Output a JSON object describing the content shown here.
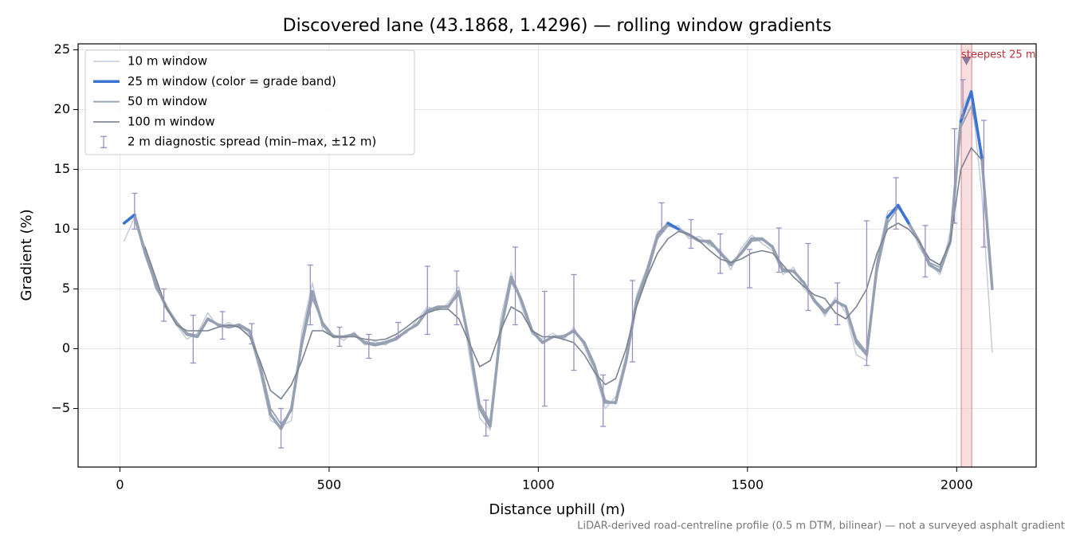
{
  "chart_data": {
    "type": "line",
    "title": "Discovered lane (43.1868, 1.4296) — rolling window gradients",
    "xlabel": "Distance uphill (m)",
    "ylabel": "Gradient (%)",
    "footnote": "LiDAR-derived road-centreline profile (0.5 m DTM, bilinear) — not a surveyed asphalt gradient",
    "xlim": [
      -100,
      2190
    ],
    "ylim": [
      -9.9,
      25.5
    ],
    "xticks": [
      0,
      500,
      1000,
      1500,
      2000
    ],
    "yticks": [
      {
        "value": -5,
        "label": "−5"
      },
      0,
      5,
      10,
      15,
      20,
      25
    ],
    "grid": true,
    "legend": "upper left",
    "x": [
      10,
      35,
      60,
      85,
      110,
      135,
      160,
      185,
      210,
      235,
      260,
      285,
      310,
      335,
      360,
      385,
      410,
      435,
      460,
      485,
      510,
      535,
      560,
      585,
      610,
      635,
      660,
      685,
      710,
      735,
      760,
      785,
      810,
      835,
      860,
      885,
      910,
      935,
      960,
      985,
      1010,
      1035,
      1060,
      1085,
      1110,
      1135,
      1160,
      1185,
      1210,
      1235,
      1260,
      1285,
      1310,
      1335,
      1360,
      1385,
      1410,
      1435,
      1460,
      1485,
      1510,
      1535,
      1560,
      1585,
      1610,
      1635,
      1660,
      1685,
      1710,
      1735,
      1760,
      1785,
      1810,
      1835,
      1860,
      1885,
      1910,
      1935,
      1960,
      1985,
      2010,
      2035,
      2060,
      2085
    ],
    "series": [
      {
        "name": "10 m window",
        "color": "#c3ccd8",
        "width": 1.5,
        "values": [
          9.0,
          11.0,
          8.5,
          5.0,
          3.8,
          2.0,
          0.8,
          1.3,
          3.0,
          1.8,
          2.2,
          1.7,
          1.2,
          -2.0,
          -6.0,
          -6.5,
          -6.0,
          1.5,
          5.5,
          1.5,
          1.2,
          0.7,
          1.4,
          0.3,
          0.6,
          0.3,
          1.0,
          1.3,
          2.4,
          3.5,
          3.2,
          3.8,
          5.2,
          -0.5,
          -5.8,
          -6.8,
          2.5,
          6.4,
          3.5,
          1.2,
          0.8,
          1.3,
          0.7,
          1.8,
          0.2,
          -2.0,
          -5.0,
          -4.0,
          -0.5,
          4.5,
          6.8,
          9.8,
          10.2,
          10.3,
          9.2,
          9.4,
          8.6,
          8.3,
          6.6,
          8.4,
          9.5,
          8.8,
          8.2,
          6.2,
          6.8,
          5.0,
          4.2,
          2.7,
          4.3,
          3.0,
          -0.5,
          -1.0,
          7.5,
          11.5,
          11.8,
          10.8,
          8.5,
          7.2,
          6.2,
          9.8,
          20.0,
          21.5,
          13.0,
          -0.3
        ]
      },
      {
        "name": "25 m window (color = grade band)",
        "color": "#3a75d4",
        "width": 3.5,
        "grade_bands": [
          {
            "from": null,
            "color": "#95a1b2"
          },
          {
            "from": 10,
            "color": "#3a75d4"
          },
          {
            "from": 20,
            "color": "#e08a0b"
          }
        ],
        "values": [
          10.5,
          11.2,
          8,
          5.5,
          3.5,
          2.2,
          1.2,
          1.0,
          2.5,
          2.0,
          1.8,
          2.0,
          1.5,
          -1.5,
          -5.5,
          -6.7,
          -5,
          0.5,
          4.8,
          2.0,
          1.0,
          1.0,
          1.2,
          0.5,
          0.3,
          0.5,
          0.8,
          1.5,
          2.0,
          3.2,
          3.5,
          3.5,
          4.8,
          0.5,
          -5,
          -6.5,
          1.5,
          6,
          4.0,
          1.5,
          0.5,
          1.0,
          1.0,
          1.5,
          0.5,
          -1.5,
          -4.5,
          -4.5,
          -1.0,
          4.0,
          6.5,
          9.5,
          10.5,
          10.0,
          9.5,
          9.0,
          9.0,
          8.0,
          7.0,
          8.0,
          9.2,
          9.2,
          8.5,
          6.5,
          6.5,
          5.5,
          4.0,
          3.0,
          4.0,
          3.5,
          0.5,
          -0.5,
          7.0,
          11.0,
          12.0,
          10.5,
          9.0,
          7.0,
          6.5,
          9.0,
          19.0,
          21.5,
          16,
          5
        ]
      },
      {
        "name": "50 m window",
        "color": "#9ba6b5",
        "width": 2,
        "values": [
          null,
          10.8,
          8.2,
          5.2,
          3.6,
          2.1,
          1.3,
          1.1,
          2.4,
          2.0,
          1.9,
          1.9,
          1.4,
          -1.2,
          -5.0,
          -6.3,
          -5.2,
          0.2,
          4.2,
          2.2,
          1.1,
          1.0,
          1.1,
          0.6,
          0.4,
          0.6,
          0.9,
          1.5,
          2.1,
          3.1,
          3.4,
          3.6,
          4.5,
          0.8,
          -4.6,
          -6.2,
          1.2,
          5.6,
          4.1,
          1.6,
          0.6,
          1.0,
          1.1,
          1.4,
          0.6,
          -1.3,
          -4.3,
          -4.6,
          -1.2,
          3.8,
          6.2,
          9.2,
          10.3,
          10.0,
          9.6,
          9.1,
          8.8,
          8.1,
          7.2,
          7.9,
          9.0,
          9.1,
          8.6,
          6.7,
          6.4,
          5.6,
          4.1,
          3.2,
          3.9,
          3.6,
          0.8,
          -0.3,
          6.5,
          10.5,
          11.8,
          10.6,
          9.1,
          7.2,
          6.8,
          8.8,
          18.5,
          20.3,
          16.5,
          null
        ]
      },
      {
        "name": "100 m window",
        "color": "#7b8390",
        "width": 1.6,
        "values": [
          null,
          null,
          8.5,
          6.0,
          3.5,
          2.0,
          1.5,
          1.5,
          1.5,
          1.8,
          2.0,
          1.8,
          1.0,
          -1.0,
          -3.5,
          -4.2,
          -3.0,
          -1.0,
          1.5,
          1.5,
          1.0,
          1.0,
          1.0,
          0.8,
          0.7,
          0.8,
          1.2,
          1.8,
          2.5,
          3.0,
          3.3,
          3.3,
          2.5,
          0.5,
          -1.5,
          -1.0,
          1.5,
          3.5,
          3.0,
          1.5,
          1.0,
          1.0,
          0.8,
          0.5,
          -0.5,
          -2.0,
          -3.0,
          -2.5,
          0,
          3.5,
          6.0,
          8.0,
          9.2,
          9.8,
          9.6,
          9.0,
          8.2,
          7.5,
          7.2,
          7.5,
          8.0,
          8.2,
          8.0,
          7.0,
          6.0,
          5.2,
          4.5,
          4.2,
          3.0,
          2.5,
          3.5,
          5.0,
          8.0,
          10.0,
          10.5,
          10.0,
          9.0,
          7.5,
          7.0,
          9.0,
          15.0,
          16.8,
          15.8,
          null
        ]
      }
    ],
    "error_bars": {
      "name": "2 m diagnostic spread (min–max, ±12 m)",
      "color": "#9a8fbf",
      "x": [
        35,
        105,
        175,
        245,
        315,
        385,
        455,
        525,
        595,
        665,
        735,
        805,
        875,
        945,
        1015,
        1085,
        1155,
        1225,
        1295,
        1365,
        1435,
        1505,
        1575,
        1645,
        1715,
        1785,
        1855,
        1925,
        1995,
        2015,
        2065
      ],
      "low": [
        10,
        2.3,
        -1.2,
        0.8,
        0.4,
        -8.3,
        2,
        0.2,
        -0.8,
        1,
        1.2,
        2,
        -7.3,
        2,
        -4.8,
        -1.8,
        -6.5,
        -1.1,
        9.8,
        8.4,
        6.3,
        5.1,
        6.4,
        3.2,
        2,
        -1.4,
        10,
        6,
        10.5,
        19.3,
        8.5
      ],
      "high": [
        13,
        5,
        2.8,
        3.1,
        2.1,
        -5,
        7,
        1.8,
        1.2,
        2.2,
        6.9,
        6.5,
        -4.3,
        8.5,
        4.8,
        6.2,
        -2.2,
        5.7,
        12.2,
        10.8,
        9.6,
        8.3,
        10.1,
        8.8,
        5.5,
        10.7,
        14.3,
        10.3,
        18.4,
        22.5,
        19.1
      ]
    },
    "steepest": {
      "label": "steepest 25 m",
      "x": [
        2011,
        2036
      ],
      "marker_y": 24.1,
      "color": "#e8a0a4",
      "marker_color": "#8e7a9e",
      "label_color": "#c0303a"
    }
  }
}
